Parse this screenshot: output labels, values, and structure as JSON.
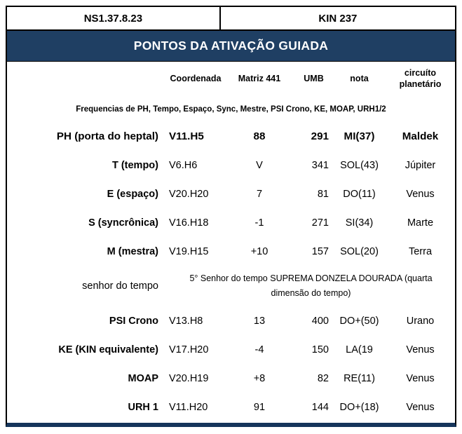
{
  "window": {
    "header_left": "NS1.37.8.23",
    "header_right": "KIN 237",
    "title": "PONTOS DA ATIVAÇÃO GUIADA"
  },
  "table": {
    "columns": {
      "coordenada": "Coordenada",
      "matriz": "Matriz 441",
      "umb": "UMB",
      "nota": "nota",
      "circuito_line1": "circuíto",
      "circuito_line2": "planetário"
    },
    "subtitle": "Frequencias de PH, Tempo, Espaço, Sync, Mestre, PSI Crono, KE, MOAP, URH1/2",
    "rows": [
      {
        "label": "PH (porta do heptal)",
        "coordenada": "V11.H5",
        "matriz": "88",
        "umb": "291",
        "nota": "MI(37)",
        "circuito": "Maldek"
      },
      {
        "label": "T (tempo)",
        "coordenada": "V6.H6",
        "matriz": "V",
        "umb": "341",
        "nota": "SOL(43)",
        "circuito": "Júpiter"
      },
      {
        "label": "E (espaço)",
        "coordenada": "V20.H20",
        "matriz": "7",
        "umb": "81",
        "nota": "DO(11)",
        "circuito": "Venus"
      },
      {
        "label": "S (syncrônica)",
        "coordenada": "V16.H18",
        "matriz": "-1",
        "umb": "271",
        "nota": "SI(34)",
        "circuito": "Marte"
      },
      {
        "label": "M (mestra)",
        "coordenada": "V19.H15",
        "matriz": "+10",
        "umb": "157",
        "nota": "SOL(20)",
        "circuito": "Terra"
      },
      {
        "label": "senhor do tempo",
        "merged": "5° Senhor do tempo SUPREMA DONZELA DOURADA (quarta dimensão do tempo)"
      },
      {
        "label": "PSI Crono",
        "coordenada": "V13.H8",
        "matriz": "13",
        "umb": "400",
        "nota": "DO+(50)",
        "circuito": "Urano"
      },
      {
        "label": "KE (KIN equivalente)",
        "coordenada": "V17.H20",
        "matriz": "-4",
        "umb": "150",
        "nota": "LA(19",
        "circuito": "Venus"
      },
      {
        "label": "MOAP",
        "coordenada": "V20.H19",
        "matriz": "+8",
        "umb": "82",
        "nota": "RE(11)",
        "circuito": "Venus"
      },
      {
        "label": "URH 1",
        "coordenada": "V11.H20",
        "matriz": "91",
        "umb": "144",
        "nota": "DO+(18)",
        "circuito": "Venus"
      }
    ]
  },
  "colors": {
    "accent_navy": "#1F3F63",
    "bottom_bar": "#16355B",
    "border": "#000000",
    "text": "#000000",
    "title_text": "#FFFFFF"
  }
}
